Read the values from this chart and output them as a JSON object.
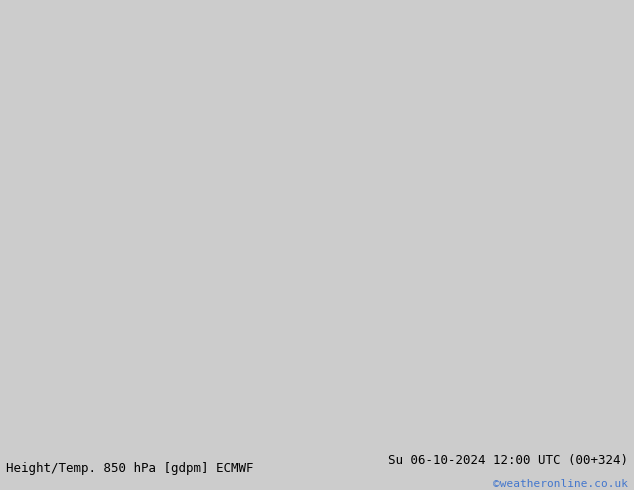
{
  "title_left": "Height/Temp. 850 hPa [gdpm] ECMWF",
  "title_right": "Su 06-10-2024 12:00 UTC (00+324)",
  "credit": "©weatheronline.co.uk",
  "credit_color": "#4477cc",
  "bg_color": "#cccccc",
  "map_land_color": "#c8e8b0",
  "map_border_color": "#888888",
  "contour_black_color": "#000000",
  "contour_green_color": "#88cc44",
  "contour_cyan_color": "#00ccaa",
  "contour_orange_color": "#ffaa00",
  "font_size_title": 9,
  "font_size_credit": 8,
  "lon_min": -18,
  "lon_max": 20,
  "lat_min": 43,
  "lat_max": 65
}
